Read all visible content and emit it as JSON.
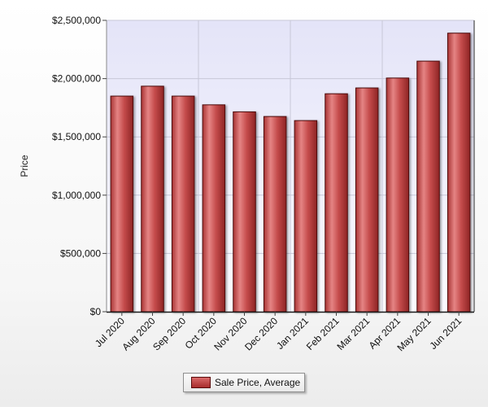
{
  "chart_data": {
    "type": "bar",
    "title": "",
    "ylabel": "Price",
    "xlabel": "",
    "categories": [
      "Jul 2020",
      "Aug 2020",
      "Sep 2020",
      "Oct 2020",
      "Nov 2020",
      "Dec 2020",
      "Jan 2021",
      "Feb 2021",
      "Mar 2021",
      "Apr 2021",
      "May 2021",
      "Jun 2021"
    ],
    "series": [
      {
        "name": "Sale Price, Average",
        "values": [
          1850000,
          1935000,
          1850000,
          1775000,
          1715000,
          1675000,
          1640000,
          1870000,
          1920000,
          2005000,
          2150000,
          2390000
        ]
      }
    ],
    "ylim": [
      0,
      2500000
    ],
    "yticks": [
      0,
      500000,
      1000000,
      1500000,
      2000000,
      2500000
    ],
    "ytick_labels": [
      "$0",
      "$500,000",
      "$1,000,000",
      "$1,500,000",
      "$2,000,000",
      "$2,500,000"
    ],
    "grid": true,
    "legend_position": "bottom-center",
    "colors": {
      "bar_top": "#e07a7a",
      "bar_mid": "#c44848",
      "bar_bottom": "#9e2a2a",
      "bar_edge": "#4d0a0a",
      "plot_bg_top": "#e4e4f8",
      "plot_bg_bottom": "#fbfbff",
      "grid": "#c8c8d8"
    }
  }
}
